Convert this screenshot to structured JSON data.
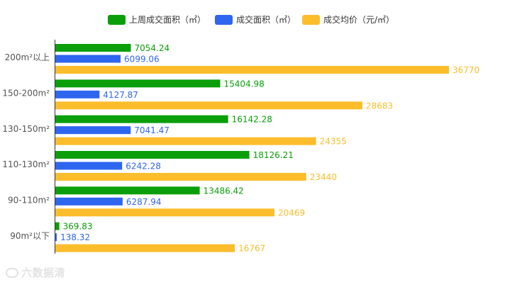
{
  "chart_data": {
    "type": "bar",
    "orientation": "horizontal",
    "title": "",
    "xlabel": "",
    "ylabel": "",
    "legend_position": "top-center",
    "grid": false,
    "categories": [
      "200m²以上",
      "150-200m²",
      "130-150m²",
      "110-130m²",
      "90-110m²",
      "90m²以下"
    ],
    "series": [
      {
        "name": "上周成交面积（㎡）",
        "color": "#0a9f0a",
        "values": [
          7054.24,
          15404.98,
          16142.28,
          18126.21,
          13486.42,
          369.83
        ]
      },
      {
        "name": "成交面积（㎡）",
        "color": "#2f66f0",
        "values": [
          6099.06,
          4127.87,
          7041.47,
          6242.28,
          6287.94,
          138.32
        ]
      },
      {
        "name": "成交均价（元/㎡）",
        "color": "#fbbd2b",
        "values": [
          36770,
          28683,
          24355,
          23440,
          20469,
          16767
        ]
      }
    ],
    "xlim": [
      0,
      40000
    ]
  },
  "watermark": {
    "text": "六数据清",
    "icon": "watermark-logo-icon"
  }
}
